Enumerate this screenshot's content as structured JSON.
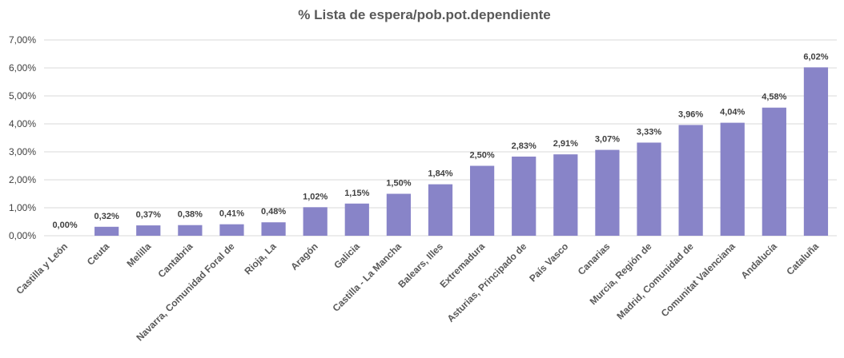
{
  "chart_data": {
    "type": "bar",
    "title": "% Lista de espera/pob.pot.dependiente",
    "categories": [
      "Castilla y León",
      "Ceuta",
      "Melilla",
      "Cantabria",
      "Navarra, Comunidad Foral de",
      "Rioja, La",
      "Aragón",
      "Galicia",
      "Castilla - La Mancha",
      "Balears, Illes",
      "Extremadura",
      "Asturias, Principado de",
      "País Vasco",
      "Canarias",
      "Murcia, Región de",
      "Madrid, Comunidad de",
      "Comunitat Valenciana",
      "Andalucía",
      "Cataluña"
    ],
    "values": [
      0.0,
      0.32,
      0.37,
      0.38,
      0.41,
      0.48,
      1.02,
      1.15,
      1.5,
      1.84,
      2.5,
      2.83,
      2.91,
      3.07,
      3.33,
      3.96,
      4.04,
      4.58,
      6.02
    ],
    "value_labels": [
      "0,00%",
      "0,32%",
      "0,37%",
      "0,38%",
      "0,41%",
      "0,48%",
      "1,02%",
      "1,15%",
      "1,50%",
      "1,84%",
      "2,50%",
      "2,83%",
      "2,91%",
      "3,07%",
      "3,33%",
      "3,96%",
      "4,04%",
      "4,58%",
      "6,02%"
    ],
    "color": "#8884c8",
    "ylim": [
      0,
      7
    ],
    "yticks": [
      {
        "value": 0,
        "label": "0,00%"
      },
      {
        "value": 1,
        "label": "1,00%"
      },
      {
        "value": 2,
        "label": "2,00%"
      },
      {
        "value": 3,
        "label": "3,00%"
      },
      {
        "value": 4,
        "label": "4,00%"
      },
      {
        "value": 5,
        "label": "5,00%"
      },
      {
        "value": 6,
        "label": "6,00%"
      },
      {
        "value": 7,
        "label": "7,00%"
      }
    ],
    "grid": true
  }
}
